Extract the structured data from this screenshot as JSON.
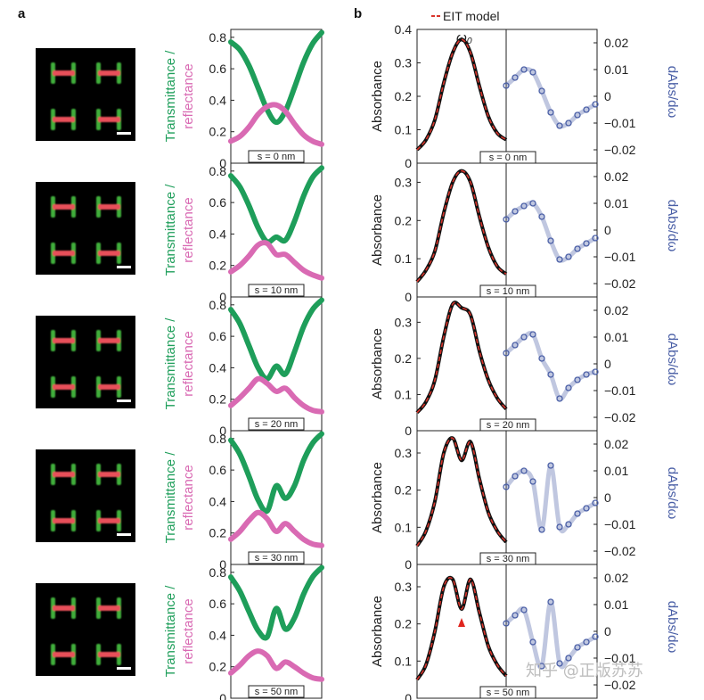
{
  "panel_labels": [
    "a",
    "b"
  ],
  "legend": {
    "label": "EIT model"
  },
  "omega_label": "ω₀",
  "watermark": "知乎 @正版苏苏",
  "colors": {
    "transmittance": "#1e9e5a",
    "reflectance": "#d96ab3",
    "absorbance_data": "#111111",
    "eit_model": "#d9342b",
    "derivative": "#4a5fa6",
    "marker": "#e0261f"
  },
  "left_axis": {
    "ylabel_part1": "Transmittance /",
    "ylabel_part2": "reflectance",
    "yticks": [
      "0",
      "0.2",
      "0.4",
      "0.6",
      "0.8"
    ]
  },
  "abs_axis": {
    "ylabel": "Absorbance",
    "yticks": [
      "0",
      "0.1",
      "0.2",
      "0.3",
      "0.4"
    ]
  },
  "deriv_axis": {
    "ylabel": "dAbs/dω",
    "yticks": [
      "0.02",
      "0.01",
      "0",
      "−0.01",
      "−0.02"
    ]
  },
  "chart_data": [
    {
      "type": "line",
      "panel": "a",
      "label": "s = 0 nm",
      "ylim": [
        0,
        0.85
      ],
      "series": [
        {
          "name": "Transmittance",
          "x": [
            0,
            0.1,
            0.2,
            0.3,
            0.4,
            0.5,
            0.6,
            0.7,
            0.8,
            0.9,
            1.0
          ],
          "values": [
            0.77,
            0.72,
            0.62,
            0.48,
            0.34,
            0.26,
            0.33,
            0.48,
            0.64,
            0.76,
            0.83
          ]
        },
        {
          "name": "Reflectance",
          "x": [
            0,
            0.1,
            0.2,
            0.3,
            0.4,
            0.5,
            0.6,
            0.7,
            0.8,
            0.9,
            1.0
          ],
          "values": [
            0.14,
            0.17,
            0.23,
            0.31,
            0.36,
            0.37,
            0.33,
            0.25,
            0.18,
            0.14,
            0.12
          ]
        }
      ]
    },
    {
      "type": "line",
      "panel": "a",
      "label": "s = 10 nm",
      "ylim": [
        0,
        0.85
      ],
      "series": [
        {
          "name": "Transmittance",
          "x": [
            0,
            0.1,
            0.2,
            0.3,
            0.4,
            0.5,
            0.6,
            0.7,
            0.8,
            0.9,
            1.0
          ],
          "values": [
            0.77,
            0.7,
            0.58,
            0.44,
            0.35,
            0.38,
            0.36,
            0.48,
            0.64,
            0.76,
            0.82
          ]
        },
        {
          "name": "Reflectance",
          "x": [
            0,
            0.1,
            0.2,
            0.3,
            0.4,
            0.5,
            0.6,
            0.7,
            0.8,
            0.9,
            1.0
          ],
          "values": [
            0.16,
            0.2,
            0.26,
            0.33,
            0.34,
            0.27,
            0.27,
            0.22,
            0.17,
            0.14,
            0.12
          ]
        }
      ]
    },
    {
      "type": "line",
      "panel": "a",
      "label": "s = 20 nm",
      "ylim": [
        0,
        0.85
      ],
      "series": [
        {
          "name": "Transmittance",
          "x": [
            0,
            0.1,
            0.2,
            0.3,
            0.4,
            0.5,
            0.6,
            0.7,
            0.8,
            0.9,
            1.0
          ],
          "values": [
            0.77,
            0.68,
            0.54,
            0.4,
            0.33,
            0.41,
            0.36,
            0.5,
            0.66,
            0.77,
            0.83
          ]
        },
        {
          "name": "Reflectance",
          "x": [
            0,
            0.1,
            0.2,
            0.3,
            0.4,
            0.5,
            0.6,
            0.7,
            0.8,
            0.9,
            1.0
          ],
          "values": [
            0.16,
            0.21,
            0.27,
            0.33,
            0.3,
            0.25,
            0.27,
            0.21,
            0.16,
            0.13,
            0.12
          ]
        }
      ]
    },
    {
      "type": "line",
      "panel": "a",
      "label": "s = 30 nm",
      "ylim": [
        0,
        0.85
      ],
      "series": [
        {
          "name": "Transmittance",
          "x": [
            0,
            0.1,
            0.2,
            0.3,
            0.4,
            0.5,
            0.6,
            0.7,
            0.8,
            0.9,
            1.0
          ],
          "values": [
            0.79,
            0.7,
            0.56,
            0.41,
            0.34,
            0.5,
            0.42,
            0.5,
            0.66,
            0.77,
            0.83
          ]
        },
        {
          "name": "Reflectance",
          "x": [
            0,
            0.1,
            0.2,
            0.3,
            0.4,
            0.5,
            0.6,
            0.7,
            0.8,
            0.9,
            1.0
          ],
          "values": [
            0.16,
            0.21,
            0.28,
            0.33,
            0.29,
            0.21,
            0.26,
            0.21,
            0.16,
            0.13,
            0.12
          ]
        }
      ]
    },
    {
      "type": "line",
      "panel": "a",
      "label": "s = 50 nm",
      "ylim": [
        0,
        0.85
      ],
      "series": [
        {
          "name": "Transmittance",
          "x": [
            0,
            0.1,
            0.2,
            0.3,
            0.4,
            0.5,
            0.6,
            0.7,
            0.8,
            0.9,
            1.0
          ],
          "values": [
            0.77,
            0.68,
            0.55,
            0.43,
            0.39,
            0.57,
            0.44,
            0.51,
            0.66,
            0.77,
            0.83
          ]
        },
        {
          "name": "Reflectance",
          "x": [
            0,
            0.1,
            0.2,
            0.3,
            0.4,
            0.5,
            0.6,
            0.7,
            0.8,
            0.9,
            1.0
          ],
          "values": [
            0.16,
            0.21,
            0.27,
            0.3,
            0.27,
            0.19,
            0.23,
            0.2,
            0.16,
            0.13,
            0.12
          ]
        }
      ]
    },
    {
      "type": "line",
      "panel": "b",
      "label": "s = 0 nm",
      "ylim": [
        0,
        0.4
      ],
      "deriv_ylim": [
        -0.025,
        0.025
      ],
      "series": [
        {
          "name": "Absorbance",
          "x": [
            0,
            0.1,
            0.2,
            0.3,
            0.4,
            0.5,
            0.6,
            0.7,
            0.8,
            0.9,
            1.0
          ],
          "values": [
            0.04,
            0.07,
            0.13,
            0.24,
            0.33,
            0.37,
            0.33,
            0.23,
            0.14,
            0.09,
            0.07
          ]
        },
        {
          "name": "EIT model",
          "x": [
            0,
            0.1,
            0.2,
            0.3,
            0.4,
            0.5,
            0.6,
            0.7,
            0.8,
            0.9,
            1.0
          ],
          "values": [
            0.04,
            0.07,
            0.13,
            0.24,
            0.33,
            0.37,
            0.33,
            0.23,
            0.14,
            0.09,
            0.07
          ]
        },
        {
          "name": "dAbs/dω",
          "x": [
            0,
            0.1,
            0.2,
            0.3,
            0.4,
            0.5,
            0.6,
            0.7,
            0.8,
            0.9,
            1.0
          ],
          "values": [
            0.004,
            0.007,
            0.01,
            0.009,
            0.002,
            -0.006,
            -0.011,
            -0.01,
            -0.007,
            -0.005,
            -0.003
          ]
        }
      ]
    },
    {
      "type": "line",
      "panel": "b",
      "label": "s = 10 nm",
      "ylim": [
        0,
        0.35
      ],
      "deriv_ylim": [
        -0.025,
        0.025
      ],
      "series": [
        {
          "name": "Absorbance",
          "x": [
            0,
            0.1,
            0.2,
            0.3,
            0.4,
            0.5,
            0.6,
            0.7,
            0.8,
            0.9,
            1.0
          ],
          "values": [
            0.04,
            0.07,
            0.12,
            0.22,
            0.3,
            0.33,
            0.3,
            0.21,
            0.13,
            0.08,
            0.06
          ]
        },
        {
          "name": "EIT model",
          "x": [
            0,
            0.1,
            0.2,
            0.3,
            0.4,
            0.5,
            0.6,
            0.7,
            0.8,
            0.9,
            1.0
          ],
          "values": [
            0.04,
            0.07,
            0.12,
            0.22,
            0.3,
            0.33,
            0.3,
            0.21,
            0.13,
            0.08,
            0.06
          ]
        },
        {
          "name": "dAbs/dω",
          "x": [
            0,
            0.1,
            0.2,
            0.3,
            0.4,
            0.5,
            0.6,
            0.7,
            0.8,
            0.9,
            1.0
          ],
          "values": [
            0.004,
            0.007,
            0.009,
            0.01,
            0.005,
            -0.004,
            -0.011,
            -0.01,
            -0.007,
            -0.005,
            -0.003
          ]
        }
      ]
    },
    {
      "type": "line",
      "panel": "b",
      "label": "s = 20 nm",
      "ylim": [
        0,
        0.37
      ],
      "deriv_ylim": [
        -0.025,
        0.025
      ],
      "series": [
        {
          "name": "Absorbance",
          "x": [
            0,
            0.1,
            0.2,
            0.3,
            0.4,
            0.5,
            0.6,
            0.7,
            0.8,
            0.9,
            1.0
          ],
          "values": [
            0.05,
            0.08,
            0.14,
            0.26,
            0.35,
            0.34,
            0.32,
            0.22,
            0.14,
            0.09,
            0.06
          ]
        },
        {
          "name": "EIT model",
          "x": [
            0,
            0.1,
            0.2,
            0.3,
            0.4,
            0.5,
            0.6,
            0.7,
            0.8,
            0.9,
            1.0
          ],
          "values": [
            0.05,
            0.08,
            0.14,
            0.26,
            0.35,
            0.34,
            0.32,
            0.22,
            0.14,
            0.09,
            0.06
          ]
        },
        {
          "name": "dAbs/dω",
          "x": [
            0,
            0.1,
            0.2,
            0.3,
            0.4,
            0.5,
            0.6,
            0.7,
            0.8,
            0.9,
            1.0
          ],
          "values": [
            0.004,
            0.007,
            0.01,
            0.011,
            0.002,
            -0.004,
            -0.013,
            -0.009,
            -0.006,
            -0.004,
            -0.003
          ]
        }
      ]
    },
    {
      "type": "line",
      "panel": "b",
      "label": "s = 30 nm",
      "ylim": [
        0,
        0.36
      ],
      "deriv_ylim": [
        -0.025,
        0.025
      ],
      "series": [
        {
          "name": "Absorbance",
          "x": [
            0,
            0.1,
            0.2,
            0.3,
            0.4,
            0.5,
            0.6,
            0.7,
            0.8,
            0.9,
            1.0
          ],
          "values": [
            0.05,
            0.09,
            0.17,
            0.3,
            0.34,
            0.28,
            0.33,
            0.23,
            0.14,
            0.09,
            0.06
          ]
        },
        {
          "name": "EIT model",
          "x": [
            0,
            0.1,
            0.2,
            0.3,
            0.4,
            0.5,
            0.6,
            0.7,
            0.8,
            0.9,
            1.0
          ],
          "values": [
            0.05,
            0.09,
            0.17,
            0.3,
            0.34,
            0.28,
            0.33,
            0.23,
            0.14,
            0.09,
            0.06
          ]
        },
        {
          "name": "dAbs/dω",
          "x": [
            0,
            0.1,
            0.2,
            0.3,
            0.4,
            0.5,
            0.6,
            0.7,
            0.8,
            0.9,
            1.0
          ],
          "values": [
            0.004,
            0.008,
            0.01,
            0.006,
            -0.012,
            0.012,
            -0.011,
            -0.01,
            -0.006,
            -0.004,
            -0.002
          ]
        }
      ]
    },
    {
      "type": "line",
      "panel": "b",
      "label": "s = 50 nm",
      "ylim": [
        0,
        0.36
      ],
      "deriv_ylim": [
        -0.025,
        0.025
      ],
      "series": [
        {
          "name": "Absorbance",
          "x": [
            0,
            0.1,
            0.2,
            0.3,
            0.4,
            0.5,
            0.6,
            0.7,
            0.8,
            0.9,
            1.0
          ],
          "values": [
            0.05,
            0.09,
            0.18,
            0.3,
            0.32,
            0.24,
            0.32,
            0.23,
            0.14,
            0.09,
            0.06
          ]
        },
        {
          "name": "EIT model",
          "x": [
            0,
            0.1,
            0.2,
            0.3,
            0.4,
            0.5,
            0.6,
            0.7,
            0.8,
            0.9,
            1.0
          ],
          "values": [
            0.05,
            0.09,
            0.18,
            0.3,
            0.32,
            0.24,
            0.32,
            0.23,
            0.14,
            0.09,
            0.06
          ]
        },
        {
          "name": "dAbs/dω",
          "x": [
            0,
            0.1,
            0.2,
            0.3,
            0.4,
            0.5,
            0.6,
            0.7,
            0.8,
            0.9,
            1.0
          ],
          "values": [
            0.003,
            0.006,
            0.008,
            -0.004,
            -0.013,
            0.011,
            -0.012,
            -0.01,
            -0.006,
            -0.004,
            -0.002
          ]
        }
      ]
    }
  ]
}
